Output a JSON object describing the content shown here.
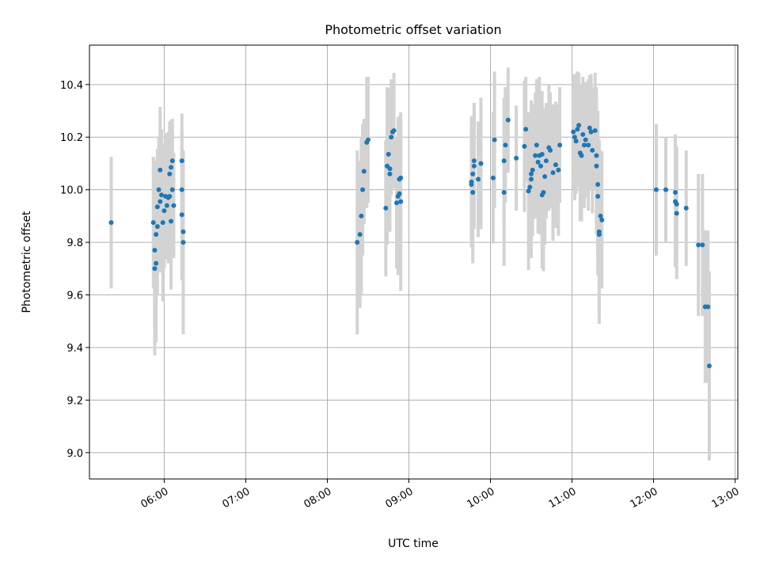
{
  "chart_data": {
    "type": "scatter",
    "title": "Photometric offset variation",
    "xlabel": "UTC time",
    "ylabel": "Photometric offset",
    "xlim": [
      "05:05",
      "13:02"
    ],
    "ylim": [
      8.9,
      10.55
    ],
    "x_ticks": [
      "06:00",
      "07:00",
      "08:00",
      "09:00",
      "10:00",
      "11:00",
      "12:00",
      "13:00"
    ],
    "y_ticks": [
      "9.0",
      "9.2",
      "9.4",
      "9.6",
      "9.8",
      "10.0",
      "10.2",
      "10.4"
    ],
    "grid": true,
    "colors": {
      "point": "#1f77b4",
      "errorbar": "#d3d3d3",
      "grid": "#b0b0b0"
    },
    "series": [
      {
        "points": [
          [
            "05:21",
            9.875,
            0.25
          ],
          [
            "05:52",
            9.875,
            0.25
          ],
          [
            "05:53",
            9.77,
            0.3
          ],
          [
            "05:53",
            9.7,
            0.33
          ],
          [
            "05:54",
            9.72,
            0.3
          ],
          [
            "05:54",
            9.83,
            0.28
          ],
          [
            "05:55",
            9.86,
            0.26
          ],
          [
            "05:55",
            9.935,
            0.22
          ],
          [
            "05:56",
            10.0,
            0.2
          ],
          [
            "05:57",
            10.075,
            0.24
          ],
          [
            "05:57",
            9.955,
            0.27
          ],
          [
            "05:58",
            9.98,
            0.25
          ],
          [
            "05:59",
            9.875,
            0.3
          ],
          [
            "06:00",
            9.92,
            0.22
          ],
          [
            "06:01",
            9.975,
            0.24
          ],
          [
            "06:02",
            9.94,
            0.2
          ],
          [
            "06:03",
            9.97,
            0.25
          ],
          [
            "06:04",
            10.06,
            0.2
          ],
          [
            "06:04",
            9.975,
            0.22
          ],
          [
            "06:05",
            9.88,
            0.26
          ],
          [
            "06:05",
            10.085,
            0.18
          ],
          [
            "06:06",
            10.11,
            0.16
          ],
          [
            "06:06",
            10.0,
            0.22
          ],
          [
            "06:07",
            9.94,
            0.2
          ],
          [
            "06:13",
            10.11,
            0.18
          ],
          [
            "06:13",
            10.0,
            0.22
          ],
          [
            "06:13",
            9.905,
            0.25
          ],
          [
            "06:14",
            9.84,
            0.28
          ],
          [
            "06:14",
            9.8,
            0.35
          ],
          [
            "08:22",
            9.8,
            0.35
          ],
          [
            "08:24",
            9.83,
            0.28
          ],
          [
            "08:25",
            9.9,
            0.3
          ],
          [
            "08:26",
            10.0,
            0.25
          ],
          [
            "08:27",
            10.07,
            0.2
          ],
          [
            "08:29",
            10.18,
            0.25
          ],
          [
            "08:30",
            10.19,
            0.24
          ],
          [
            "08:43",
            9.93,
            0.26
          ],
          [
            "08:44",
            10.09,
            0.3
          ],
          [
            "08:45",
            10.135,
            0.25
          ],
          [
            "08:46",
            10.06,
            0.22
          ],
          [
            "08:46",
            10.08,
            0.2
          ],
          [
            "08:47",
            10.2,
            0.22
          ],
          [
            "08:48",
            10.22,
            0.2
          ],
          [
            "08:49",
            10.225,
            0.22
          ],
          [
            "08:51",
            9.95,
            0.25
          ],
          [
            "08:52",
            9.975,
            0.3
          ],
          [
            "08:53",
            9.985,
            0.28
          ],
          [
            "08:53",
            10.04,
            0.24
          ],
          [
            "08:54",
            10.045,
            0.22
          ],
          [
            "08:54",
            9.955,
            0.34
          ],
          [
            "09:46",
            10.03,
            0.25
          ],
          [
            "09:46",
            10.02,
            0.22
          ],
          [
            "09:47",
            9.99,
            0.27
          ],
          [
            "09:47",
            10.06,
            0.2
          ],
          [
            "09:48",
            10.09,
            0.24
          ],
          [
            "09:48",
            10.11,
            0.22
          ],
          [
            "09:51",
            10.04,
            0.22
          ],
          [
            "09:53",
            10.1,
            0.25
          ],
          [
            "10:02",
            10.045,
            0.25
          ],
          [
            "10:03",
            10.19,
            0.26
          ],
          [
            "10:10",
            9.99,
            0.28
          ],
          [
            "10:10",
            10.11,
            0.24
          ],
          [
            "10:11",
            10.17,
            0.22
          ],
          [
            "10:13",
            10.265,
            0.2
          ],
          [
            "10:19",
            10.12,
            0.2
          ],
          [
            "10:25",
            10.165,
            0.25
          ],
          [
            "10:26",
            10.23,
            0.2
          ],
          [
            "10:28",
            9.995,
            0.3
          ],
          [
            "10:29",
            10.01,
            0.25
          ],
          [
            "10:30",
            10.06,
            0.28
          ],
          [
            "10:30",
            10.04,
            0.3
          ],
          [
            "10:31",
            10.075,
            0.25
          ],
          [
            "10:33",
            10.13,
            0.24
          ],
          [
            "10:34",
            10.17,
            0.25
          ],
          [
            "10:35",
            10.105,
            0.27
          ],
          [
            "10:36",
            10.13,
            0.3
          ],
          [
            "10:37",
            10.09,
            0.25
          ],
          [
            "10:38",
            10.135,
            0.24
          ],
          [
            "10:38",
            9.98,
            0.28
          ],
          [
            "10:39",
            9.99,
            0.3
          ],
          [
            "10:40",
            10.05,
            0.26
          ],
          [
            "10:41",
            10.11,
            0.22
          ],
          [
            "10:43",
            10.16,
            0.24
          ],
          [
            "10:44",
            10.15,
            0.22
          ],
          [
            "10:46",
            10.065,
            0.26
          ],
          [
            "10:48",
            10.095,
            0.24
          ],
          [
            "10:50",
            10.075,
            0.25
          ],
          [
            "10:51",
            10.17,
            0.22
          ],
          [
            "11:01",
            10.22,
            0.22
          ],
          [
            "11:02",
            10.2,
            0.24
          ],
          [
            "11:03",
            10.185,
            0.2
          ],
          [
            "11:04",
            10.23,
            0.22
          ],
          [
            "11:05",
            10.245,
            0.2
          ],
          [
            "11:06",
            10.14,
            0.26
          ],
          [
            "11:07",
            10.13,
            0.25
          ],
          [
            "11:08",
            10.21,
            0.22
          ],
          [
            "11:09",
            10.17,
            0.24
          ],
          [
            "11:10",
            10.19,
            0.22
          ],
          [
            "11:12",
            10.17,
            0.25
          ],
          [
            "11:13",
            10.235,
            0.2
          ],
          [
            "11:14",
            10.22,
            0.22
          ],
          [
            "11:15",
            10.15,
            0.24
          ],
          [
            "11:17",
            10.225,
            0.22
          ],
          [
            "11:18",
            10.13,
            0.26
          ],
          [
            "11:18",
            10.09,
            0.26
          ],
          [
            "11:19",
            10.02,
            0.28
          ],
          [
            "11:19",
            9.975,
            0.3
          ],
          [
            "11:20",
            9.84,
            0.35
          ],
          [
            "11:20",
            9.83,
            0.3
          ],
          [
            "11:21",
            9.9,
            0.25
          ],
          [
            "11:22",
            9.885,
            0.26
          ],
          [
            "12:02",
            10.0,
            0.25
          ],
          [
            "12:09",
            10.0,
            0.2
          ],
          [
            "12:16",
            9.99,
            0.22
          ],
          [
            "12:16",
            9.955,
            0.25
          ],
          [
            "12:17",
            9.945,
            0.22
          ],
          [
            "12:17",
            9.91,
            0.25
          ],
          [
            "12:24",
            9.93,
            0.22
          ],
          [
            "12:33",
            9.79,
            0.27
          ],
          [
            "12:36",
            9.79,
            0.27
          ],
          [
            "12:38",
            9.555,
            0.29
          ],
          [
            "12:40",
            9.555,
            0.29
          ],
          [
            "12:41",
            9.33,
            0.36
          ]
        ]
      }
    ]
  }
}
